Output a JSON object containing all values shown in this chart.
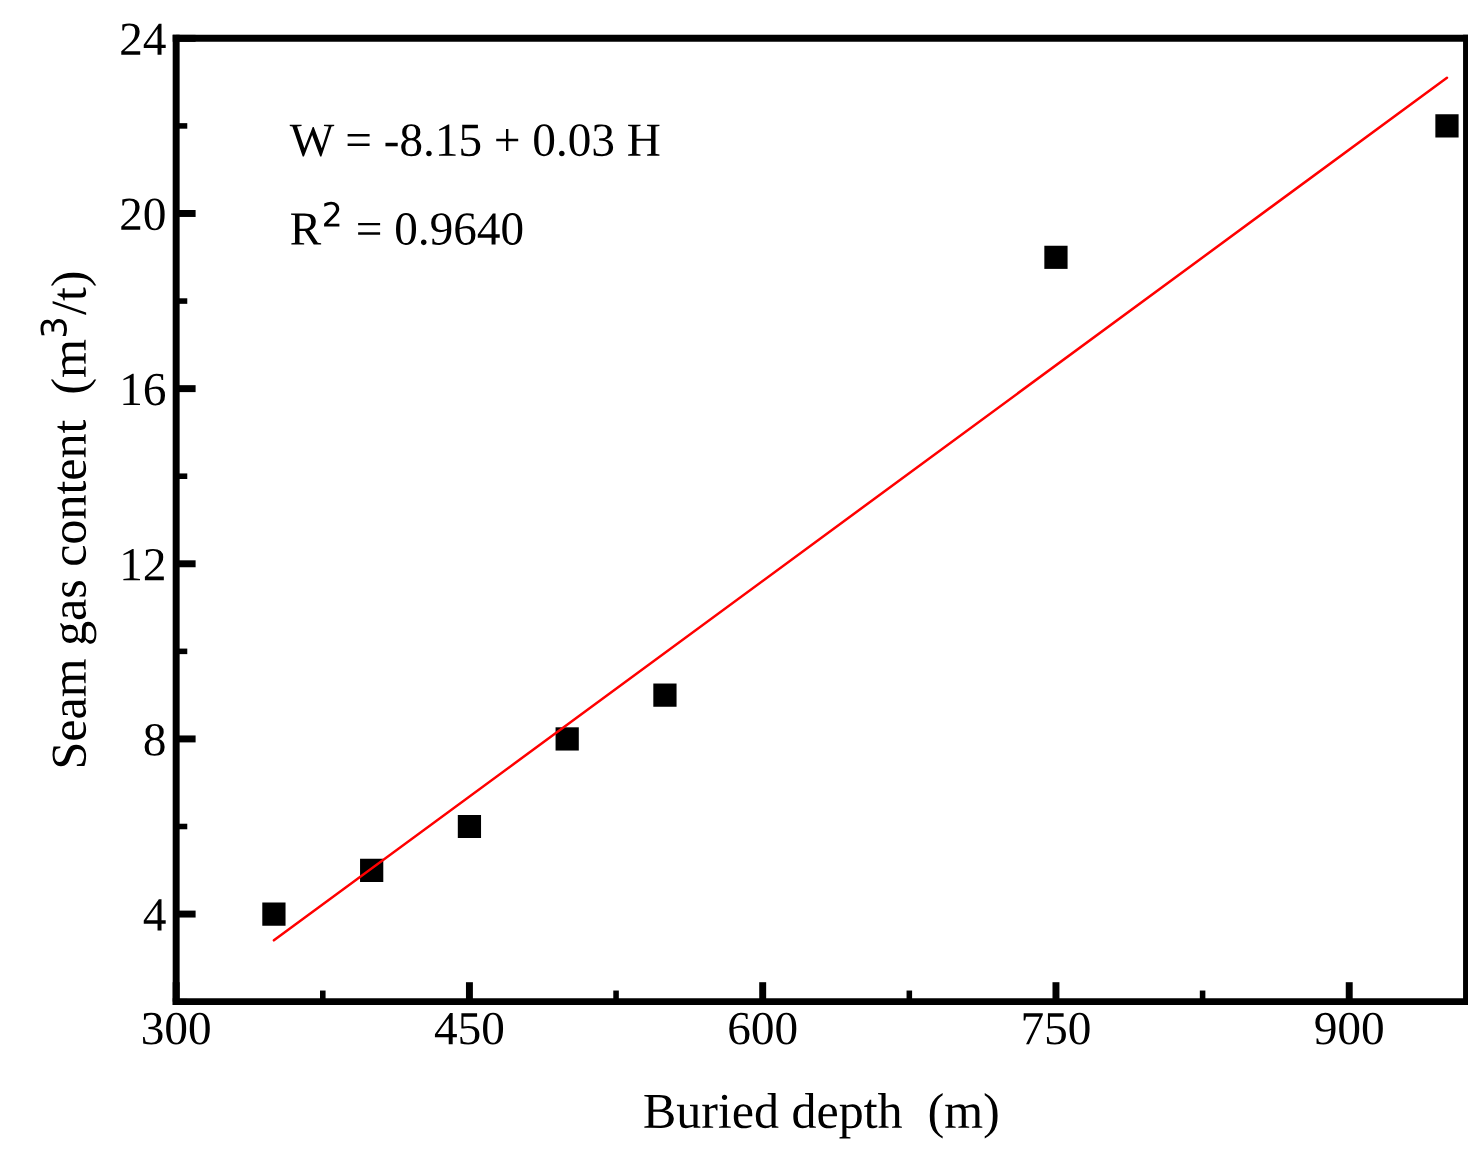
{
  "chart_data": {
    "type": "scatter",
    "xlabel": "Buried depth  (m)",
    "ylabel": "Seam gas content  (m$^{3}$/t)",
    "annotations": [
      "W = -8.15 + 0.03 H",
      "R$^{2}$ = 0.9640"
    ],
    "x": [
      350,
      400,
      450,
      500,
      550,
      750,
      950
    ],
    "series": [
      {
        "color": "#000000",
        "marker": "square",
        "values": [
          4,
          5,
          6,
          8,
          9,
          19,
          22
        ]
      },
      {
        "type": "line",
        "color": "#ff0000",
        "marker": "none",
        "line_style": "solid",
        "x": [
          350,
          950
        ],
        "values": [
          3.4,
          23.1
        ]
      }
    ],
    "xlim": [
      300,
      960
    ],
    "ylim": [
      2,
      24
    ],
    "xticks": [
      300,
      450,
      600,
      750,
      900
    ],
    "yticks": [
      4,
      8,
      12,
      16,
      20,
      24
    ],
    "grid": false,
    "legend": false
  }
}
